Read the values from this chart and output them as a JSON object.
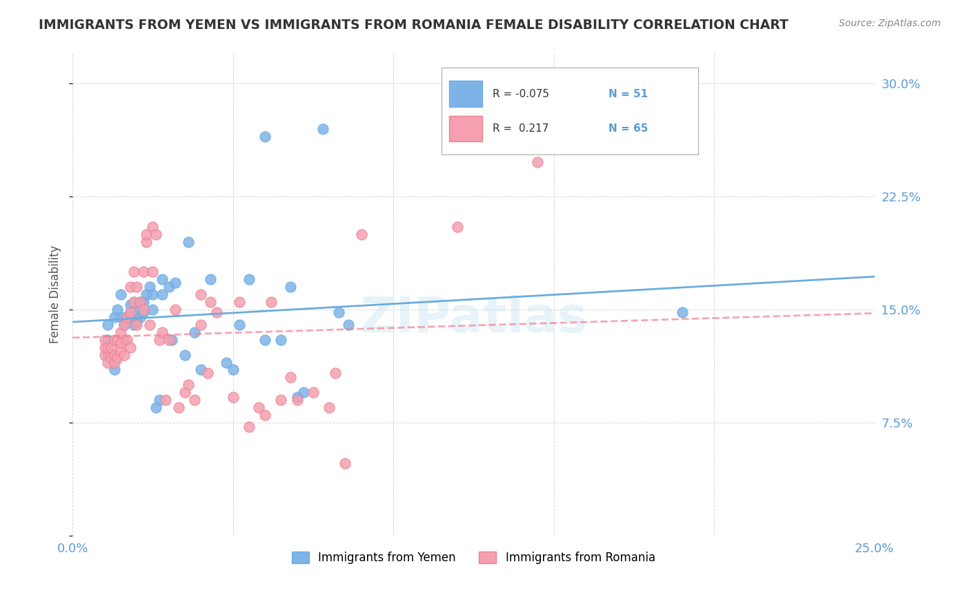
{
  "title": "IMMIGRANTS FROM YEMEN VS IMMIGRANTS FROM ROMANIA FEMALE DISABILITY CORRELATION CHART",
  "source": "Source: ZipAtlas.com",
  "ylabel": "Female Disability",
  "xlim": [
    0.0,
    0.25
  ],
  "ylim": [
    0.0,
    0.32
  ],
  "xticks": [
    0.0,
    0.05,
    0.1,
    0.15,
    0.2,
    0.25
  ],
  "xticklabels": [
    "0.0%",
    "",
    "",
    "",
    "",
    "25.0%"
  ],
  "yticks": [
    0.0,
    0.075,
    0.15,
    0.225,
    0.3
  ],
  "yticklabels": [
    "",
    "7.5%",
    "15.0%",
    "22.5%",
    "30.0%"
  ],
  "legend_R_yemen": "-0.075",
  "legend_N_yemen": "51",
  "legend_R_romania": "0.217",
  "legend_N_romania": "65",
  "color_yemen": "#7EB3E8",
  "color_romania": "#F4A0B0",
  "line_color_yemen": "#6AACDF",
  "line_color_romania": "#F08090",
  "watermark": "ZIPatlas",
  "yemen_x": [
    0.011,
    0.011,
    0.011,
    0.013,
    0.013,
    0.014,
    0.015,
    0.015,
    0.016,
    0.016,
    0.017,
    0.018,
    0.018,
    0.019,
    0.019,
    0.02,
    0.02,
    0.021,
    0.021,
    0.022,
    0.022,
    0.023,
    0.024,
    0.025,
    0.025,
    0.026,
    0.027,
    0.028,
    0.028,
    0.03,
    0.031,
    0.032,
    0.035,
    0.036,
    0.038,
    0.04,
    0.043,
    0.048,
    0.05,
    0.052,
    0.055,
    0.06,
    0.06,
    0.065,
    0.068,
    0.07,
    0.072,
    0.078,
    0.083,
    0.086,
    0.19
  ],
  "yemen_y": [
    0.12,
    0.13,
    0.14,
    0.11,
    0.145,
    0.15,
    0.145,
    0.16,
    0.13,
    0.14,
    0.145,
    0.148,
    0.153,
    0.14,
    0.155,
    0.142,
    0.15,
    0.145,
    0.155,
    0.148,
    0.155,
    0.16,
    0.165,
    0.15,
    0.16,
    0.085,
    0.09,
    0.16,
    0.17,
    0.165,
    0.13,
    0.168,
    0.12,
    0.195,
    0.135,
    0.11,
    0.17,
    0.115,
    0.11,
    0.14,
    0.17,
    0.13,
    0.265,
    0.13,
    0.165,
    0.092,
    0.095,
    0.27,
    0.148,
    0.14,
    0.148
  ],
  "romania_x": [
    0.01,
    0.01,
    0.01,
    0.011,
    0.011,
    0.012,
    0.012,
    0.013,
    0.013,
    0.013,
    0.014,
    0.014,
    0.015,
    0.015,
    0.015,
    0.016,
    0.016,
    0.017,
    0.017,
    0.018,
    0.018,
    0.018,
    0.019,
    0.019,
    0.02,
    0.02,
    0.021,
    0.022,
    0.022,
    0.023,
    0.023,
    0.024,
    0.025,
    0.025,
    0.026,
    0.027,
    0.028,
    0.029,
    0.03,
    0.032,
    0.033,
    0.035,
    0.036,
    0.038,
    0.04,
    0.04,
    0.042,
    0.043,
    0.045,
    0.05,
    0.052,
    0.055,
    0.058,
    0.06,
    0.062,
    0.065,
    0.068,
    0.07,
    0.075,
    0.08,
    0.082,
    0.085,
    0.09,
    0.12,
    0.145
  ],
  "romania_y": [
    0.12,
    0.125,
    0.13,
    0.115,
    0.125,
    0.118,
    0.125,
    0.115,
    0.12,
    0.13,
    0.118,
    0.13,
    0.122,
    0.128,
    0.135,
    0.12,
    0.14,
    0.13,
    0.145,
    0.125,
    0.148,
    0.165,
    0.155,
    0.175,
    0.14,
    0.165,
    0.155,
    0.15,
    0.175,
    0.195,
    0.2,
    0.14,
    0.205,
    0.175,
    0.2,
    0.13,
    0.135,
    0.09,
    0.13,
    0.15,
    0.085,
    0.095,
    0.1,
    0.09,
    0.14,
    0.16,
    0.108,
    0.155,
    0.148,
    0.092,
    0.155,
    0.072,
    0.085,
    0.08,
    0.155,
    0.09,
    0.105,
    0.09,
    0.095,
    0.085,
    0.108,
    0.048,
    0.2,
    0.205,
    0.248
  ]
}
